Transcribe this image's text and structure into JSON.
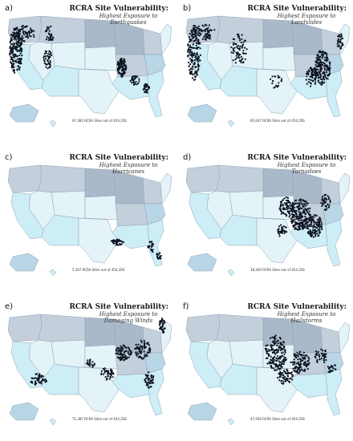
{
  "colors": {
    "state_light": "#e3f3f8",
    "state_cyan": "#cdeef6",
    "state_blue": "#b9d6e6",
    "state_grey": "#c3cfdb",
    "state_dark": "#a9b9c9",
    "border": "#8fa3b5",
    "dot": "#0b1220"
  },
  "panels": [
    {
      "label": "a)",
      "title": "RCRA Site Vulnerability:",
      "subtitle": "Highest Exposure to Earthquakes",
      "count": "97,383 RCRA Sites out of 454,356",
      "hazard": "earthquakes"
    },
    {
      "label": "b)",
      "title": "RCRA Site Vulnerability:",
      "subtitle": "Highest Exposure to Landslides",
      "count": "95,047 RCRA Sites out of 454,356",
      "hazard": "landslides"
    },
    {
      "label": "c)",
      "title": "RCRA Site Vulnerability:",
      "subtitle": "Highest Exposure to Hurricanes",
      "count": "5,307 RCRA Sites out of 454,356",
      "hazard": "hurricanes"
    },
    {
      "label": "d)",
      "title": "RCRA Site Vulnerability:",
      "subtitle": "Highest Exposure to Tornadoes",
      "count": "18,400 RCRA Sites out of 454,356",
      "hazard": "tornadoes"
    },
    {
      "label": "e)",
      "title": "RCRA Site Vulnerability:",
      "subtitle": "Highest Exposure to Damaging Winds",
      "count": "71,387 RCRA Sites out of 454,356",
      "hazard": "winds"
    },
    {
      "label": "f)",
      "title": "RCRA Site Vulnerability:",
      "subtitle": "Highest Exposure to Hailstorms",
      "count": "47,560 RCRA Sites out of 454,356",
      "hazard": "hail"
    }
  ]
}
